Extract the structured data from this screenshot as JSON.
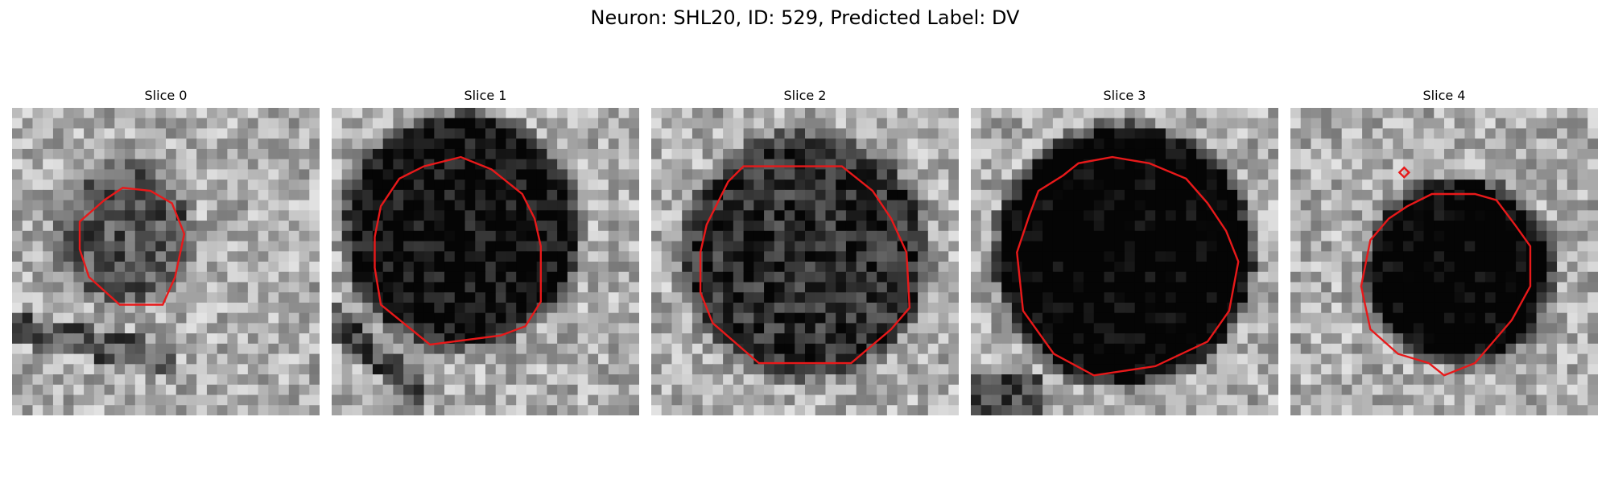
{
  "figure": {
    "title": "Neuron: SHL20, ID: 529, Predicted Label: DV"
  },
  "panels": [
    {
      "title": "Slice 0",
      "blob_darkness": 0.35,
      "blob_radius_fraction": 0.23
    },
    {
      "title": "Slice 1",
      "blob_darkness": 0.65,
      "blob_radius_fraction": 0.38
    },
    {
      "title": "Slice 2",
      "blob_darkness": 0.5,
      "blob_radius_fraction": 0.4
    },
    {
      "title": "Slice 3",
      "blob_darkness": 0.75,
      "blob_radius_fraction": 0.42
    },
    {
      "title": "Slice 4",
      "blob_darkness": 0.75,
      "blob_radius_fraction": 0.3
    }
  ],
  "colors": {
    "contour": "#e8191a",
    "background": "#ffffff"
  }
}
